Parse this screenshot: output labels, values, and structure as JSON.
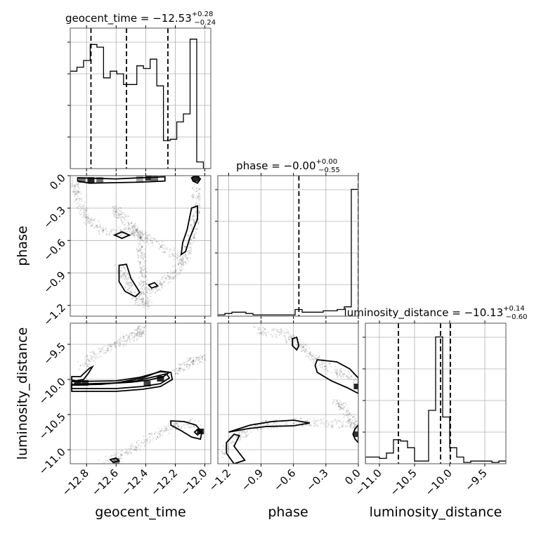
{
  "chart_data": {
    "type": "corner",
    "parameters": [
      "geocent_time",
      "phase",
      "luminosity_distance"
    ],
    "axis_labels": {
      "geocent_time": "geocent_time",
      "phase": "phase",
      "luminosity_distance": "luminosity_distance"
    },
    "titles": {
      "geocent_time": {
        "label": "geocent_time",
        "median": "−12.53",
        "plus": "+0.28",
        "minus": "−0.24"
      },
      "phase": {
        "label": "phase",
        "median": "−0.00",
        "plus": "+0.00",
        "minus": "−0.55"
      },
      "luminosity_distance": {
        "label": "luminosity_distance",
        "median": "−10.13",
        "plus": "+0.14",
        "minus": "−0.60"
      }
    },
    "ranges": {
      "geocent_time": [
        -12.91,
        -11.96
      ],
      "phase": [
        -1.3,
        0.0
      ],
      "luminosity_distance": [
        -11.2,
        -9.2
      ]
    },
    "ticks": {
      "geocent_time": {
        "values": [
          -12.8,
          -12.6,
          -12.4,
          -12.2,
          -12.0
        ],
        "labels": [
          "−12.8",
          "−12.6",
          "−12.4",
          "−12.2",
          "−12.0"
        ]
      },
      "phase": {
        "values": [
          -1.2,
          -0.9,
          -0.6,
          -0.3,
          0.0
        ],
        "labels": [
          "−1.2",
          "−0.9",
          "−0.6",
          "−0.3",
          "0.0"
        ]
      },
      "luminosity_distance": {
        "values": [
          -11.0,
          -10.5,
          -10.0,
          -9.5
        ],
        "labels": [
          "−11.0",
          "−10.5",
          "−10.0",
          "−9.5"
        ]
      }
    },
    "quantiles": {
      "geocent_time": [
        -12.77,
        -12.53,
        -12.25
      ],
      "phase": [
        -0.55,
        -0.0
      ],
      "luminosity_distance": [
        -10.73,
        -10.13,
        -9.99
      ]
    },
    "histograms": {
      "geocent_time": {
        "edges": [
          -12.91,
          -12.865,
          -12.82,
          -12.775,
          -12.73,
          -12.685,
          -12.64,
          -12.595,
          -12.55,
          -12.505,
          -12.46,
          -12.415,
          -12.37,
          -12.325,
          -12.28,
          -12.235,
          -12.19,
          -12.145,
          -12.1,
          -12.055,
          -12.01,
          -11.965
        ],
        "values": [
          0.73,
          0.76,
          0.81,
          0.93,
          0.91,
          0.68,
          0.73,
          0.71,
          0.63,
          0.63,
          0.77,
          0.75,
          0.82,
          0.62,
          0.21,
          0.22,
          0.35,
          0.41,
          0.97,
          0.05,
          0.0
        ]
      },
      "phase": {
        "edges": [
          -1.3,
          -1.235,
          -1.17,
          -1.105,
          -1.04,
          -0.975,
          -0.91,
          -0.845,
          -0.78,
          -0.715,
          -0.65,
          -0.585,
          -0.52,
          -0.455,
          -0.39,
          -0.325,
          -0.26,
          -0.195,
          -0.13,
          -0.065,
          0.0
        ],
        "values": [
          0.01,
          0.02,
          0.03,
          0.03,
          0.02,
          0.01,
          0.01,
          0.01,
          0.01,
          0.01,
          0.01,
          0.05,
          0.03,
          0.03,
          0.03,
          0.04,
          0.04,
          0.05,
          0.07,
          0.95
        ]
      },
      "luminosity_distance": {
        "edges": [
          -11.2,
          -11.1,
          -11.0,
          -10.9,
          -10.8,
          -10.7,
          -10.6,
          -10.5,
          -10.4,
          -10.3,
          -10.2,
          -10.1,
          -10.0,
          -9.9,
          -9.8,
          -9.7,
          -9.6,
          -9.5,
          -9.4,
          -9.3,
          -9.2
        ],
        "values": [
          0.05,
          0.05,
          0.04,
          0.08,
          0.18,
          0.17,
          0.12,
          0.02,
          0.02,
          0.4,
          0.95,
          0.35,
          0.12,
          0.05,
          0.01,
          0.02,
          0.02,
          0.02,
          0.01,
          0.02
        ]
      }
    },
    "panels_2d": [
      {
        "x": "geocent_time",
        "y": "phase",
        "hot_cells": [
          [
            -12.83,
            -0.04,
            0.55
          ],
          [
            -12.77,
            -0.04,
            0.85
          ],
          [
            -12.71,
            -0.04,
            0.55
          ],
          [
            -12.44,
            -0.03,
            0.35
          ],
          [
            -12.38,
            -0.02,
            0.8
          ],
          [
            -12.34,
            -0.03,
            0.55
          ],
          [
            -12.06,
            -0.03,
            0.85
          ]
        ],
        "contours": [
          [
            [
              -12.86,
              -0.02
            ],
            [
              -12.6,
              -0.03
            ],
            [
              -12.44,
              -0.02
            ],
            [
              -12.27,
              -0.01
            ],
            [
              -12.27,
              -0.05
            ],
            [
              -12.44,
              -0.06
            ],
            [
              -12.78,
              -0.07
            ],
            [
              -12.86,
              -0.05
            ]
          ],
          [
            [
              -12.09,
              -0.02
            ],
            [
              -12.06,
              0.0
            ],
            [
              -12.03,
              -0.03
            ],
            [
              -12.05,
              -0.07
            ],
            [
              -12.08,
              -0.05
            ]
          ],
          [
            [
              -12.09,
              -0.3
            ],
            [
              -12.05,
              -0.28
            ],
            [
              -12.05,
              -0.4
            ],
            [
              -12.1,
              -0.57
            ],
            [
              -12.13,
              -0.7
            ],
            [
              -12.16,
              -0.73
            ],
            [
              -12.15,
              -0.62
            ],
            [
              -12.12,
              -0.5
            ]
          ],
          [
            [
              -12.61,
              -0.55
            ],
            [
              -12.56,
              -0.52
            ],
            [
              -12.51,
              -0.55
            ],
            [
              -12.56,
              -0.58
            ]
          ],
          [
            [
              -12.58,
              -0.83
            ],
            [
              -12.53,
              -0.82
            ],
            [
              -12.5,
              -0.95
            ],
            [
              -12.44,
              -1.08
            ],
            [
              -12.47,
              -1.12
            ],
            [
              -12.54,
              -1.07
            ],
            [
              -12.58,
              -0.98
            ]
          ],
          [
            [
              -12.38,
              -1.01
            ],
            [
              -12.34,
              -0.99
            ],
            [
              -12.32,
              -1.02
            ],
            [
              -12.36,
              -1.04
            ]
          ]
        ],
        "scatter_paths": [
          [
            [
              -12.88,
              -0.04
            ],
            [
              -12.86,
              -0.2
            ],
            [
              -12.8,
              -0.4
            ],
            [
              -12.68,
              -0.52
            ],
            [
              -12.5,
              -0.52
            ],
            [
              -12.42,
              -0.55
            ]
          ],
          [
            [
              -12.44,
              -0.55
            ],
            [
              -12.43,
              -0.75
            ],
            [
              -12.42,
              -0.95
            ],
            [
              -12.4,
              -1.1
            ]
          ],
          [
            [
              -12.58,
              -0.85
            ],
            [
              -12.52,
              -1.0
            ],
            [
              -12.45,
              -1.15
            ],
            [
              -12.38,
              -1.2
            ]
          ],
          [
            [
              -12.4,
              -1.12
            ],
            [
              -12.3,
              -1.0
            ],
            [
              -12.2,
              -0.9
            ],
            [
              -12.13,
              -0.75
            ],
            [
              -12.09,
              -0.55
            ],
            [
              -12.06,
              -0.35
            ],
            [
              -12.06,
              -0.1
            ]
          ],
          [
            [
              -12.62,
              -0.3
            ],
            [
              -12.55,
              -0.4
            ],
            [
              -12.45,
              -0.52
            ],
            [
              -12.3,
              -0.65
            ],
            [
              -12.15,
              -0.78
            ]
          ]
        ]
      },
      {
        "x": "geocent_time",
        "y": "luminosity_distance",
        "hot_cells": [
          [
            -12.86,
            -10.05,
            0.85
          ],
          [
            -12.81,
            -10.05,
            0.75
          ],
          [
            -12.3,
            -9.99,
            0.85
          ],
          [
            -12.39,
            -10.06,
            0.75
          ],
          [
            -12.03,
            -10.74,
            0.85
          ],
          [
            -12.6,
            -11.16,
            0.5
          ]
        ],
        "contours": [
          [
            [
              -12.9,
              -9.96
            ],
            [
              -12.84,
              -9.96
            ],
            [
              -12.78,
              -9.84
            ],
            [
              -12.76,
              -9.82
            ],
            [
              -12.79,
              -9.92
            ],
            [
              -12.82,
              -10.0
            ],
            [
              -12.87,
              -10.02
            ],
            [
              -12.9,
              -10.01
            ]
          ],
          [
            [
              -12.9,
              -10.08
            ],
            [
              -12.66,
              -10.06
            ],
            [
              -12.5,
              -10.04
            ],
            [
              -12.38,
              -10.01
            ],
            [
              -12.28,
              -9.96
            ],
            [
              -12.24,
              -9.9
            ],
            [
              -12.3,
              -9.89
            ],
            [
              -12.44,
              -9.97
            ],
            [
              -12.6,
              -10.02
            ],
            [
              -12.9,
              -10.03
            ]
          ],
          [
            [
              -12.9,
              -10.13
            ],
            [
              -12.6,
              -10.13
            ],
            [
              -12.42,
              -10.1
            ],
            [
              -12.3,
              -10.06
            ],
            [
              -12.24,
              -9.98
            ],
            [
              -12.26,
              -9.92
            ],
            [
              -12.34,
              -9.96
            ],
            [
              -12.46,
              -10.02
            ],
            [
              -12.7,
              -10.07
            ],
            [
              -12.9,
              -10.08
            ]
          ],
          [
            [
              -12.9,
              -10.17
            ],
            [
              -12.6,
              -10.17
            ],
            [
              -12.42,
              -10.14
            ],
            [
              -12.3,
              -10.1
            ],
            [
              -12.22,
              -10.0
            ],
            [
              -12.23,
              -9.9
            ],
            [
              -12.3,
              -9.88
            ],
            [
              -12.42,
              -9.98
            ],
            [
              -12.6,
              -10.05
            ],
            [
              -12.9,
              -10.07
            ]
          ],
          [
            [
              -12.23,
              -10.59
            ],
            [
              -12.14,
              -10.6
            ],
            [
              -12.06,
              -10.65
            ],
            [
              -12.02,
              -10.75
            ],
            [
              -12.03,
              -10.85
            ],
            [
              -12.09,
              -10.82
            ],
            [
              -12.16,
              -10.73
            ],
            [
              -12.23,
              -10.65
            ]
          ],
          [
            [
              -12.05,
              -10.71
            ],
            [
              -12.03,
              -10.75
            ],
            [
              -12.05,
              -10.79
            ],
            [
              -12.07,
              -10.75
            ]
          ],
          [
            [
              -12.64,
              -11.14
            ],
            [
              -12.6,
              -11.12
            ],
            [
              -12.58,
              -11.16
            ],
            [
              -12.62,
              -11.18
            ]
          ]
        ],
        "scatter_paths": [
          [
            [
              -12.85,
              -9.82
            ],
            [
              -12.7,
              -9.6
            ],
            [
              -12.55,
              -9.45
            ],
            [
              -12.45,
              -9.35
            ],
            [
              -12.42,
              -9.28
            ]
          ],
          [
            [
              -12.2,
              -9.9
            ],
            [
              -12.1,
              -9.75
            ],
            [
              -12.0,
              -9.7
            ]
          ],
          [
            [
              -12.7,
              -11.2
            ],
            [
              -12.5,
              -11.0
            ],
            [
              -12.35,
              -10.8
            ],
            [
              -12.2,
              -10.65
            ],
            [
              -12.05,
              -10.62
            ]
          ]
        ]
      },
      {
        "x": "phase",
        "y": "luminosity_distance",
        "hot_cells": [
          [
            -0.01,
            -10.1,
            0.85
          ],
          [
            -0.01,
            -10.78,
            0.8
          ]
        ],
        "contours": [
          [
            [
              -0.38,
              -9.72
            ],
            [
              -0.2,
              -9.75
            ],
            [
              -0.08,
              -9.85
            ],
            [
              0.0,
              -9.98
            ],
            [
              0.0,
              -10.2
            ],
            [
              -0.1,
              -10.12
            ],
            [
              -0.25,
              -10.02
            ],
            [
              -0.38,
              -9.9
            ],
            [
              -0.4,
              -9.8
            ]
          ],
          [
            [
              -0.61,
              -9.42
            ],
            [
              -0.57,
              -9.4
            ],
            [
              -0.55,
              -9.52
            ],
            [
              -0.57,
              -9.58
            ],
            [
              -0.61,
              -9.52
            ]
          ],
          [
            [
              -1.2,
              -10.75
            ],
            [
              -1.1,
              -10.7
            ],
            [
              -1.0,
              -10.65
            ],
            [
              -0.8,
              -10.6
            ],
            [
              -0.6,
              -10.58
            ],
            [
              -0.45,
              -10.62
            ],
            [
              -0.6,
              -10.66
            ],
            [
              -0.85,
              -10.67
            ],
            [
              -1.02,
              -10.7
            ]
          ],
          [
            [
              -1.15,
              -10.78
            ],
            [
              -1.1,
              -10.8
            ],
            [
              -1.15,
              -10.95
            ],
            [
              -1.05,
              -11.15
            ],
            [
              -1.15,
              -11.2
            ],
            [
              -1.22,
              -11.05
            ],
            [
              -1.22,
              -10.9
            ]
          ],
          [
            [
              -0.03,
              -10.7
            ],
            [
              0.0,
              -10.65
            ],
            [
              0.0,
              -10.9
            ],
            [
              -0.03,
              -10.85
            ],
            [
              -0.05,
              -10.78
            ]
          ]
        ],
        "scatter_paths": [
          [
            [
              -1.3,
              -11.1
            ],
            [
              -1.1,
              -10.8
            ],
            [
              -0.9,
              -10.65
            ],
            [
              -0.6,
              -10.6
            ],
            [
              -0.3,
              -10.62
            ],
            [
              0.0,
              -10.65
            ]
          ],
          [
            [
              -0.95,
              -9.3
            ],
            [
              -0.7,
              -9.35
            ],
            [
              -0.55,
              -9.5
            ],
            [
              -0.4,
              -9.7
            ],
            [
              -0.2,
              -9.9
            ],
            [
              0.0,
              -10.0
            ]
          ],
          [
            [
              -0.2,
              -10.3
            ],
            [
              -0.1,
              -10.5
            ],
            [
              0.0,
              -10.7
            ]
          ]
        ]
      }
    ]
  }
}
